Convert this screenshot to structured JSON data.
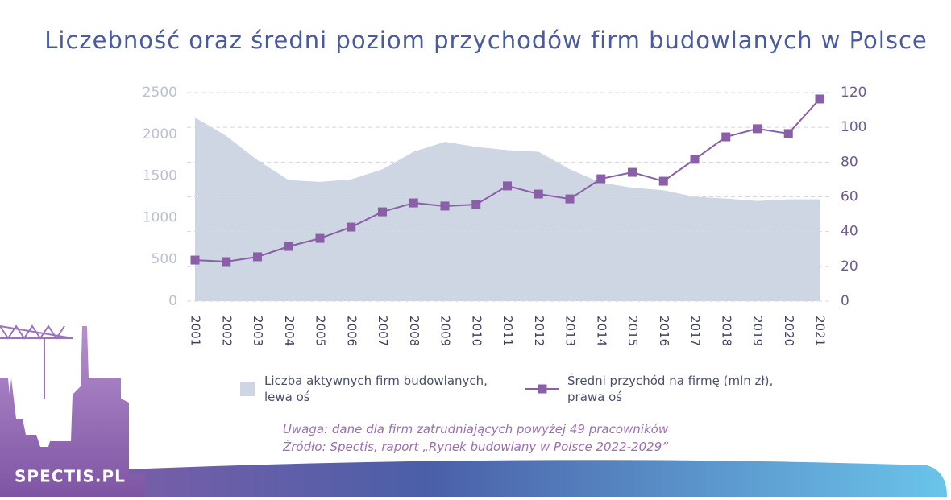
{
  "brand": "SPECTIS.PL",
  "chart_data": {
    "type": "combo",
    "title": "Liczebność oraz średni poziom przychodów firm budowlanych w Polsce",
    "categories": [
      "2001",
      "2002",
      "2003",
      "2004",
      "2005",
      "2006",
      "2007",
      "2008",
      "2009",
      "2010",
      "2011",
      "2012",
      "2013",
      "2014",
      "2015",
      "2016",
      "2017",
      "2018",
      "2019",
      "2020",
      "2021"
    ],
    "series": [
      {
        "name": "Liczba aktywnych firm budowlanych, lewa oś",
        "type": "area",
        "color": "#cdd6e2",
        "values": [
          2200,
          1980,
          1690,
          1450,
          1430,
          1460,
          1580,
          1790,
          1910,
          1850,
          1810,
          1790,
          1580,
          1420,
          1360,
          1330,
          1250,
          1230,
          1200,
          1220,
          1220
        ]
      },
      {
        "name": "Średni przychód na firmę (mln zł), prawa oś",
        "type": "line",
        "axis": "y2",
        "color": "#8a5fa8",
        "values": [
          23.6,
          22.7,
          25.5,
          31.5,
          36.1,
          42.6,
          51.4,
          56.5,
          54.7,
          55.6,
          66.3,
          61.6,
          58.8,
          70.4,
          74.1,
          69.0,
          81.6,
          94.5,
          99.2,
          96.4,
          116.3
        ]
      }
    ],
    "ylim": [
      0,
      2500
    ],
    "yticks": [
      0,
      500,
      1000,
      1500,
      2000,
      2500
    ],
    "y2lim": [
      0,
      120
    ],
    "y2ticks": [
      0,
      20,
      40,
      60,
      80,
      100,
      120
    ],
    "grid": true,
    "notes": [
      "Uwaga: dane dla firm zatrudniających powyżej 49 pracowników",
      "Źródło: Spectis, raport „Rynek budowlany w Polsce 2022-2029”"
    ]
  }
}
